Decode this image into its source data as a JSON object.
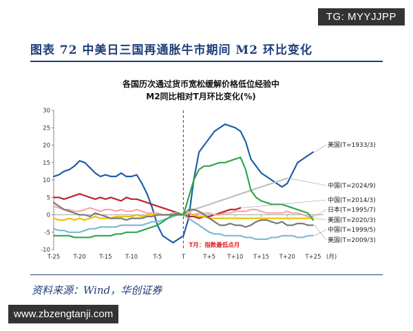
{
  "badge": "TG: MYYJJPP",
  "header": {
    "title": "图表 72  中美日三国再通胀牛市期间 M2 环比变化"
  },
  "source": "资料来源：Wind，华创证券",
  "watermark": "www.zbzengtanji.com",
  "colors": {
    "header": "#1f3e7a",
    "marker": "#e02020"
  },
  "chart_data": {
    "type": "line",
    "title": "各国历次通过货币宽松缓解价格低位经验中",
    "subtitle": "M2同比相对T月环比变化(%)",
    "xlabel": "",
    "ylabel": "",
    "x": [
      -25,
      -24,
      -23,
      -22,
      -21,
      -20,
      -19,
      -18,
      -17,
      -16,
      -15,
      -14,
      -13,
      -12,
      -11,
      -10,
      -9,
      -8,
      -7,
      -6,
      -5,
      -4,
      -3,
      -2,
      -1,
      0,
      1,
      2,
      3,
      4,
      5,
      6,
      7,
      8,
      9,
      10,
      11,
      12,
      13,
      14,
      15,
      16,
      17,
      18,
      19,
      20,
      21,
      22,
      23,
      24,
      25
    ],
    "xticks": [
      -25,
      -20,
      -15,
      -10,
      -5,
      0,
      5,
      10,
      15,
      20,
      25
    ],
    "xtick_labels": [
      "T-25",
      "T-20",
      "T-15",
      "T-10",
      "T-5",
      "T",
      "T+5",
      "T+10",
      "T+15",
      "T+20",
      "T+25"
    ],
    "x_unit_label": "(月)",
    "xlim": [
      -25,
      27
    ],
    "ylim": [
      -10,
      30
    ],
    "yticks": [
      -10,
      -5,
      0,
      5,
      10,
      15,
      20,
      25,
      30
    ],
    "grid": false,
    "marker_line": {
      "x": 0,
      "label": "T月：指数最低点月"
    },
    "legend_position": "right",
    "series": [
      {
        "name": "美国(T=1933/3)",
        "color": "#1f5fa8",
        "values": [
          11,
          11.5,
          12.5,
          13,
          14,
          15.5,
          15,
          13.5,
          12,
          11,
          11.5,
          11,
          11,
          12,
          11,
          11,
          11.5,
          9,
          6,
          2,
          -3,
          -6,
          -7,
          -8,
          -7,
          -6,
          -1,
          10,
          18,
          20,
          22,
          24,
          25,
          26,
          25.5,
          25,
          24,
          21,
          16,
          14,
          12,
          11,
          10,
          9,
          8,
          9,
          12,
          15,
          16,
          17,
          18
        ]
      },
      {
        "name": "中国(T=2024/9)",
        "color": "#c0c0c0",
        "values": [
          null,
          null,
          null,
          null,
          null,
          null,
          null,
          null,
          null,
          null,
          null,
          null,
          null,
          null,
          null,
          null,
          null,
          null,
          null,
          null,
          null,
          null,
          null,
          null,
          null,
          0,
          0.5,
          1.5,
          2,
          2.5,
          3,
          3.5,
          4,
          4.5,
          5,
          5.5,
          6,
          6.5,
          7,
          7.5,
          8,
          8.5,
          9,
          9.5,
          10,
          10.5,
          null,
          null,
          null,
          null,
          null
        ]
      },
      {
        "name": "中国(T=2014/3)",
        "color": "#b8262e",
        "values": [
          5,
          5,
          4.5,
          5,
          5.5,
          6,
          5.5,
          5,
          4.5,
          5,
          4.5,
          5,
          4.5,
          4,
          5,
          4.5,
          4.5,
          4,
          3.5,
          3,
          2.5,
          2,
          1.5,
          1,
          0.5,
          0,
          -0.5,
          -0.5,
          -1,
          -0.5,
          -0.5,
          0,
          0.5,
          1,
          1.5,
          1.5,
          2,
          null,
          null,
          null,
          null,
          null,
          null,
          null,
          null,
          null,
          null,
          null,
          null,
          null,
          null
        ]
      },
      {
        "name": "日本(T=1995/7)",
        "color": "#f2a8a8",
        "values": [
          2.5,
          2,
          1.5,
          1.5,
          1,
          1,
          1.5,
          2,
          1.5,
          1,
          1.5,
          1.5,
          1,
          1.5,
          1,
          1,
          1.5,
          1,
          0.5,
          0.5,
          0.5,
          0,
          0,
          0.5,
          0.5,
          0,
          0.5,
          0,
          0.5,
          0.5,
          0.5,
          0,
          0,
          0.5,
          0.5,
          1,
          1,
          1,
          1.5,
          1.5,
          1,
          0.5,
          0.5,
          0.5,
          0.5,
          1,
          0.5,
          0.5,
          0,
          -0.5,
          -0.5
        ]
      },
      {
        "name": "美国(T=2020/3)",
        "color": "#f0c000",
        "values": [
          -1,
          -1.5,
          -1.5,
          -1,
          -1.5,
          -1,
          -1.5,
          -1,
          -0.5,
          -1,
          -1,
          -1,
          -0.5,
          -0.5,
          -0.5,
          -0.5,
          0,
          -0.5,
          0,
          0,
          0,
          0,
          0,
          0,
          0,
          0,
          0.5,
          0,
          -0.5,
          -0.5,
          -1,
          -1,
          -1,
          -1,
          -1,
          -1,
          -1,
          -1,
          -1,
          -1,
          -1,
          -1,
          -1,
          -1,
          -1,
          -1,
          -1,
          -1,
          -1,
          -1,
          -1
        ]
      },
      {
        "name": "中国(T=1999/5)",
        "color": "#7fb8d6",
        "values": [
          -4,
          -4.5,
          -4.5,
          -5,
          -5,
          -5,
          -4.5,
          -4,
          -4,
          -3.5,
          -3.5,
          -3.5,
          -3.5,
          -3,
          -3,
          -3,
          -3,
          -3,
          -2.5,
          -2,
          -2,
          -1.5,
          -1,
          -0.5,
          0,
          0,
          -1,
          -2,
          -3,
          -4,
          -5,
          -5.5,
          -5.5,
          -6,
          -6,
          -6,
          -6,
          -6.5,
          -6.5,
          -7,
          -7,
          -7,
          -6.5,
          -6.5,
          -6,
          -6,
          -6,
          -6.5,
          -6.5,
          -6,
          -6
        ]
      },
      {
        "name": "美国(T=2009/3)",
        "color": "#7a7a7a",
        "values": [
          3.5,
          2.5,
          1.5,
          1,
          0.5,
          0,
          0,
          -0.5,
          0.5,
          0,
          -0.5,
          -1,
          -1,
          -1,
          -1.5,
          -1,
          -1,
          -1,
          -0.5,
          -0.5,
          0,
          0,
          0,
          0,
          0,
          0,
          1.5,
          1.5,
          1,
          0,
          -1,
          -2,
          -3,
          -3,
          -2.5,
          -3,
          -3,
          -3.5,
          -3,
          -2,
          -1.5,
          -1.5,
          -2,
          -2.5,
          -2,
          -3,
          -3,
          -2.5,
          -2.5,
          -3,
          -3
        ]
      },
      {
        "name": "",
        "color": "#2ea84a",
        "values": [
          -6,
          -6,
          -6,
          -6,
          -6.5,
          -6.5,
          -6.5,
          -6.5,
          -6,
          -6,
          -6,
          -6,
          -5.5,
          -5.5,
          -5,
          -5,
          -5,
          -4.5,
          -4,
          -3.5,
          -3,
          -2,
          -1,
          0,
          0.5,
          0,
          5,
          10,
          13,
          14,
          14,
          14.5,
          15,
          15,
          15.5,
          16,
          16.5,
          13,
          7,
          5,
          4,
          3.5,
          3,
          3,
          3,
          2.5,
          2,
          1.5,
          1,
          0.5,
          -1.5
        ]
      }
    ]
  }
}
